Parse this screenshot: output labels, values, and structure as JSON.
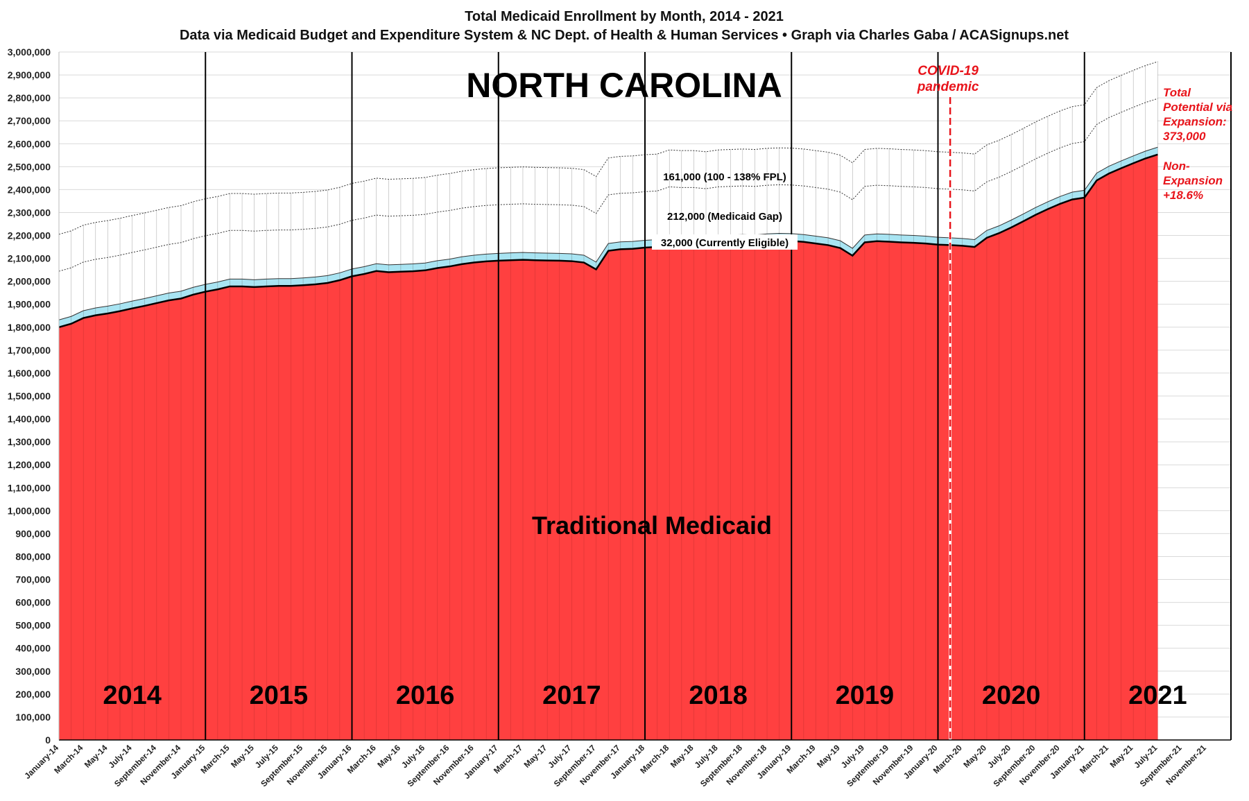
{
  "chart_data": {
    "type": "area",
    "title": "Total Medicaid Enrollment by Month, 2014 - 2021",
    "subtitle": "Data via Medicaid Budget and Expenditure System & NC Dept. of Health & Human Services  •  Graph via Charles Gaba / ACASignups.net",
    "state_label": "NORTH CAROLINA",
    "area_label": "Traditional Medicaid",
    "ylim": [
      0,
      3000000
    ],
    "y_ticks": [
      0,
      100000,
      200000,
      300000,
      400000,
      500000,
      600000,
      700000,
      800000,
      900000,
      1000000,
      1100000,
      1200000,
      1300000,
      1400000,
      1500000,
      1600000,
      1700000,
      1800000,
      1900000,
      2000000,
      2100000,
      2200000,
      2300000,
      2400000,
      2500000,
      2600000,
      2700000,
      2800000,
      2900000,
      3000000
    ],
    "y_tick_labels": [
      "0",
      "100,000",
      "200,000",
      "300,000",
      "400,000",
      "500,000",
      "600,000",
      "700,000",
      "800,000",
      "900,000",
      "1,000,000",
      "1,100,000",
      "1,200,000",
      "1,300,000",
      "1,400,000",
      "1,500,000",
      "1,600,000",
      "1,700,000",
      "1,800,000",
      "1,900,000",
      "2,000,000",
      "2,100,000",
      "2,200,000",
      "2,300,000",
      "2,400,000",
      "2,500,000",
      "2,600,000",
      "2,700,000",
      "2,800,000",
      "2,900,000",
      "3,000,000"
    ],
    "x_tick_labels": [
      "January-14",
      "March-14",
      "May-14",
      "July-14",
      "September-14",
      "November-14",
      "January-15",
      "March-15",
      "May-15",
      "July-15",
      "September-15",
      "November-15",
      "January-16",
      "March-16",
      "May-16",
      "July-16",
      "September-16",
      "November-16",
      "January-17",
      "March-17",
      "May-17",
      "July-17",
      "September-17",
      "November-17",
      "January-18",
      "March-18",
      "May-18",
      "July-18",
      "September-18",
      "November-18",
      "January-19",
      "March-19",
      "May-19",
      "July-19",
      "September-19",
      "November-19",
      "January-20",
      "March-20",
      "May-20",
      "July-20",
      "September-20",
      "November-20",
      "January-21",
      "March-21",
      "May-21",
      "July-21",
      "September-21",
      "November-21"
    ],
    "x_axis_months": 96,
    "year_labels": [
      "2014",
      "2015",
      "2016",
      "2017",
      "2018",
      "2019",
      "2020",
      "2021"
    ],
    "covid_label": [
      "COVID-19",
      "pandemic"
    ],
    "covid_month_index": 73,
    "layer_labels": {
      "fpl": "161,000 (100 - 138% FPL)",
      "gap": "212,000 (Medicaid Gap)",
      "eligible": "32,000 (Currently Eligible)"
    },
    "side_notes": {
      "total": [
        "Total",
        "Potential via",
        "Expansion:",
        "373,000"
      ],
      "nonexp": [
        "Non-",
        "Expansion",
        "+18.6%"
      ]
    },
    "layer_increments": {
      "eligible": 32000,
      "gap": 212000,
      "fpl": 161000
    },
    "series": [
      {
        "name": "Traditional Medicaid",
        "values": [
          1800000,
          1815000,
          1840000,
          1852000,
          1860000,
          1870000,
          1882000,
          1893000,
          1905000,
          1917000,
          1925000,
          1942000,
          1955000,
          1965000,
          1978000,
          1978000,
          1975000,
          1978000,
          1980000,
          1980000,
          1983000,
          1987000,
          1993000,
          2005000,
          2022000,
          2032000,
          2045000,
          2040000,
          2042000,
          2044000,
          2048000,
          2058000,
          2065000,
          2075000,
          2082000,
          2087000,
          2090000,
          2092000,
          2094000,
          2092000,
          2091000,
          2090000,
          2088000,
          2082000,
          2052000,
          2133000,
          2140000,
          2142000,
          2147000,
          2150000,
          2168000,
          2165000,
          2165000,
          2160000,
          2168000,
          2170000,
          2172000,
          2170000,
          2175000,
          2177000,
          2176000,
          2172000,
          2165000,
          2158000,
          2145000,
          2112000,
          2170000,
          2175000,
          2173000,
          2170000,
          2168000,
          2165000,
          2160000,
          2158000,
          2155000,
          2150000,
          2190000,
          2210000,
          2235000,
          2262000,
          2290000,
          2315000,
          2338000,
          2357000,
          2365000,
          2440000,
          2470000,
          2493000,
          2515000,
          2536000,
          2553000
        ],
        "color": "#ff4040"
      }
    ]
  }
}
